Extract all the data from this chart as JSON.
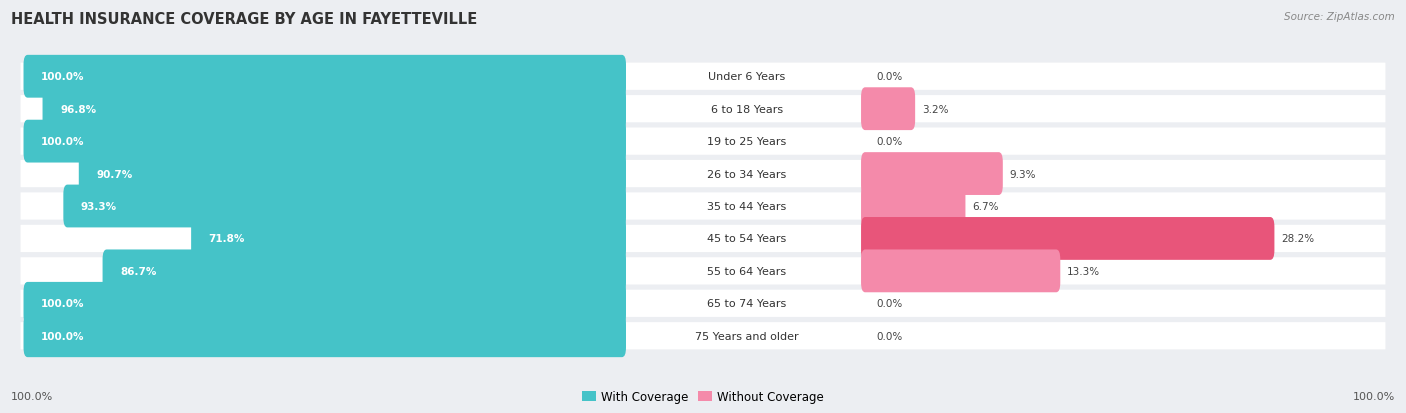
{
  "title": "HEALTH INSURANCE COVERAGE BY AGE IN FAYETTEVILLE",
  "source": "Source: ZipAtlas.com",
  "categories": [
    "Under 6 Years",
    "6 to 18 Years",
    "19 to 25 Years",
    "26 to 34 Years",
    "35 to 44 Years",
    "45 to 54 Years",
    "55 to 64 Years",
    "65 to 74 Years",
    "75 Years and older"
  ],
  "with_coverage": [
    100.0,
    96.8,
    100.0,
    90.7,
    93.3,
    71.8,
    86.7,
    100.0,
    100.0
  ],
  "without_coverage": [
    0.0,
    3.2,
    0.0,
    9.3,
    6.7,
    28.2,
    13.3,
    0.0,
    0.0
  ],
  "color_with": "#45C3C8",
  "color_without": "#F48AAA",
  "color_without_large": "#E8557A",
  "bg_color": "#ECEEF2",
  "bar_bg": "#FFFFFF",
  "title_fontsize": 10.5,
  "label_fontsize": 8,
  "bar_label_fontsize": 7.5,
  "legend_fontsize": 8.5,
  "footer_fontsize": 8
}
